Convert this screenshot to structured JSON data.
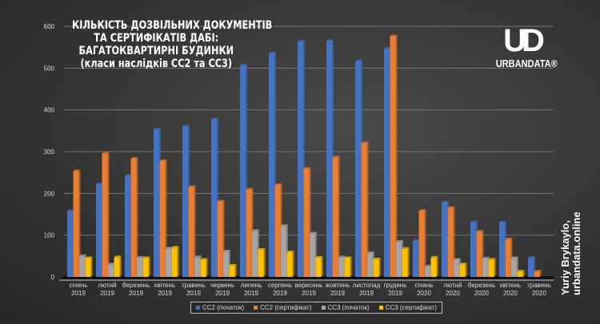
{
  "chart_data": {
    "type": "bar",
    "title_lines": [
      "КІЛЬКІСТЬ ДОЗВІЛЬНИХ ДОКУМЕНТІВ",
      "ТА СЕРТИФІКАТІВ ДАБІ:",
      "БАГАТОКВАРТИРНІ БУДИНКИ",
      "(класи наслідків СС2 та СС3)"
    ],
    "categories": [
      [
        "січень",
        "2019"
      ],
      [
        "лютий",
        "2019"
      ],
      [
        "березень",
        "2019"
      ],
      [
        "квітень",
        "2019"
      ],
      [
        "травень",
        "2019"
      ],
      [
        "червень",
        "2019"
      ],
      [
        "липень",
        "2019"
      ],
      [
        "серпень",
        "2019"
      ],
      [
        "вересень",
        "2019"
      ],
      [
        "жовтень",
        "2019"
      ],
      [
        "листопад",
        "2019"
      ],
      [
        "грудень",
        "2019"
      ],
      [
        "січень",
        "2020"
      ],
      [
        "лютий",
        "2020"
      ],
      [
        "березень",
        "2020"
      ],
      [
        "квітень",
        "2020"
      ],
      [
        "травень",
        "2020"
      ]
    ],
    "series": [
      {
        "name": "СС2 (початок)",
        "color": "#4472c4",
        "values": [
          158,
          222,
          242,
          353,
          360,
          377,
          506,
          535,
          563,
          565,
          516,
          546,
          86,
          178,
          131,
          130,
          46
        ]
      },
      {
        "name": "СС2 (сертифікат)",
        "color": "#ed7d31",
        "values": [
          253,
          295,
          283,
          277,
          215,
          180,
          209,
          220,
          259,
          286,
          320,
          576,
          158,
          165,
          108,
          90,
          13
        ]
      },
      {
        "name": "СС3 (початок)",
        "color": "#a5a5a5",
        "values": [
          50,
          30,
          46,
          68,
          47,
          61,
          110,
          122,
          104,
          47,
          57,
          84,
          25,
          41,
          44,
          45,
          0
        ]
      },
      {
        "name": "СС3 (сертифікат)",
        "color": "#ffc000",
        "values": [
          45,
          47,
          45,
          70,
          41,
          27,
          65,
          59,
          46,
          45,
          42,
          67,
          46,
          30,
          41,
          13,
          0
        ]
      }
    ],
    "ylim": [
      0,
      600
    ],
    "yticks": [
      "0",
      "100",
      "200",
      "300",
      "400",
      "500",
      "600"
    ],
    "grid": true,
    "legend_position": "bottom"
  },
  "logo": {
    "mark": "UD",
    "text": "URBANDATA®"
  },
  "credit": {
    "line1": "Yuriy Brykaylo,",
    "line2": "urbandata.online"
  }
}
